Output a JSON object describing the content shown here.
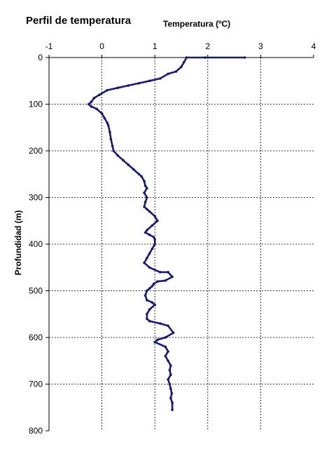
{
  "chart_data": {
    "type": "scatter",
    "title": "Perfil de temperatura",
    "xlabel": "Temperatura (ºC)",
    "ylabel": "Profundidad (m)",
    "xlim": [
      -1,
      4
    ],
    "ylim": [
      0,
      800
    ],
    "y_reversed": true,
    "x_axis_position": "top",
    "x_ticks": [
      "-1",
      "0",
      "1",
      "2",
      "3",
      "4"
    ],
    "y_ticks": [
      "0",
      "100",
      "200",
      "300",
      "400",
      "500",
      "600",
      "700",
      "800"
    ],
    "grid": true,
    "color": "#1a1a6e",
    "x": [
      2.7,
      1.95,
      1.6,
      1.55,
      1.5,
      1.4,
      1.25,
      1.1,
      0.9,
      0.7,
      0.5,
      0.3,
      0.1,
      -0.05,
      -0.15,
      -0.2,
      -0.25,
      -0.2,
      -0.1,
      0.0,
      0.05,
      0.1,
      0.12,
      0.15,
      0.17,
      0.2,
      0.22,
      0.3,
      0.4,
      0.5,
      0.6,
      0.7,
      0.75,
      0.8,
      0.82,
      0.85,
      0.8,
      0.85,
      0.82,
      0.8,
      0.85,
      0.9,
      1.0,
      1.05,
      0.95,
      0.85,
      0.82,
      0.9,
      0.98,
      1.0,
      1.0,
      0.95,
      0.9,
      0.85,
      0.8,
      0.9,
      1.1,
      1.25,
      1.33,
      1.2,
      1.05,
      0.98,
      0.95,
      0.9,
      0.85,
      0.82,
      0.85,
      0.95,
      1.0,
      0.9,
      0.85,
      0.85,
      0.9,
      1.1,
      1.25,
      1.35,
      1.2,
      1.05,
      1.0,
      1.2,
      1.25,
      1.2,
      1.25,
      1.3,
      1.28,
      1.3,
      1.25,
      1.28,
      1.3,
      1.32,
      1.3,
      1.33,
      1.33
    ],
    "y": [
      0,
      0,
      0,
      10,
      20,
      30,
      35,
      45,
      50,
      55,
      60,
      65,
      70,
      80,
      87,
      95,
      100,
      105,
      110,
      120,
      130,
      140,
      145,
      160,
      175,
      190,
      200,
      210,
      220,
      230,
      240,
      250,
      255,
      265,
      275,
      280,
      290,
      300,
      310,
      320,
      325,
      330,
      340,
      350,
      360,
      370,
      375,
      380,
      385,
      390,
      400,
      410,
      420,
      430,
      440,
      450,
      460,
      460,
      470,
      478,
      480,
      485,
      490,
      495,
      500,
      510,
      520,
      525,
      530,
      540,
      550,
      560,
      565,
      570,
      575,
      590,
      600,
      605,
      610,
      620,
      630,
      640,
      650,
      660,
      670,
      680,
      690,
      700,
      710,
      720,
      730,
      740,
      755
    ]
  }
}
